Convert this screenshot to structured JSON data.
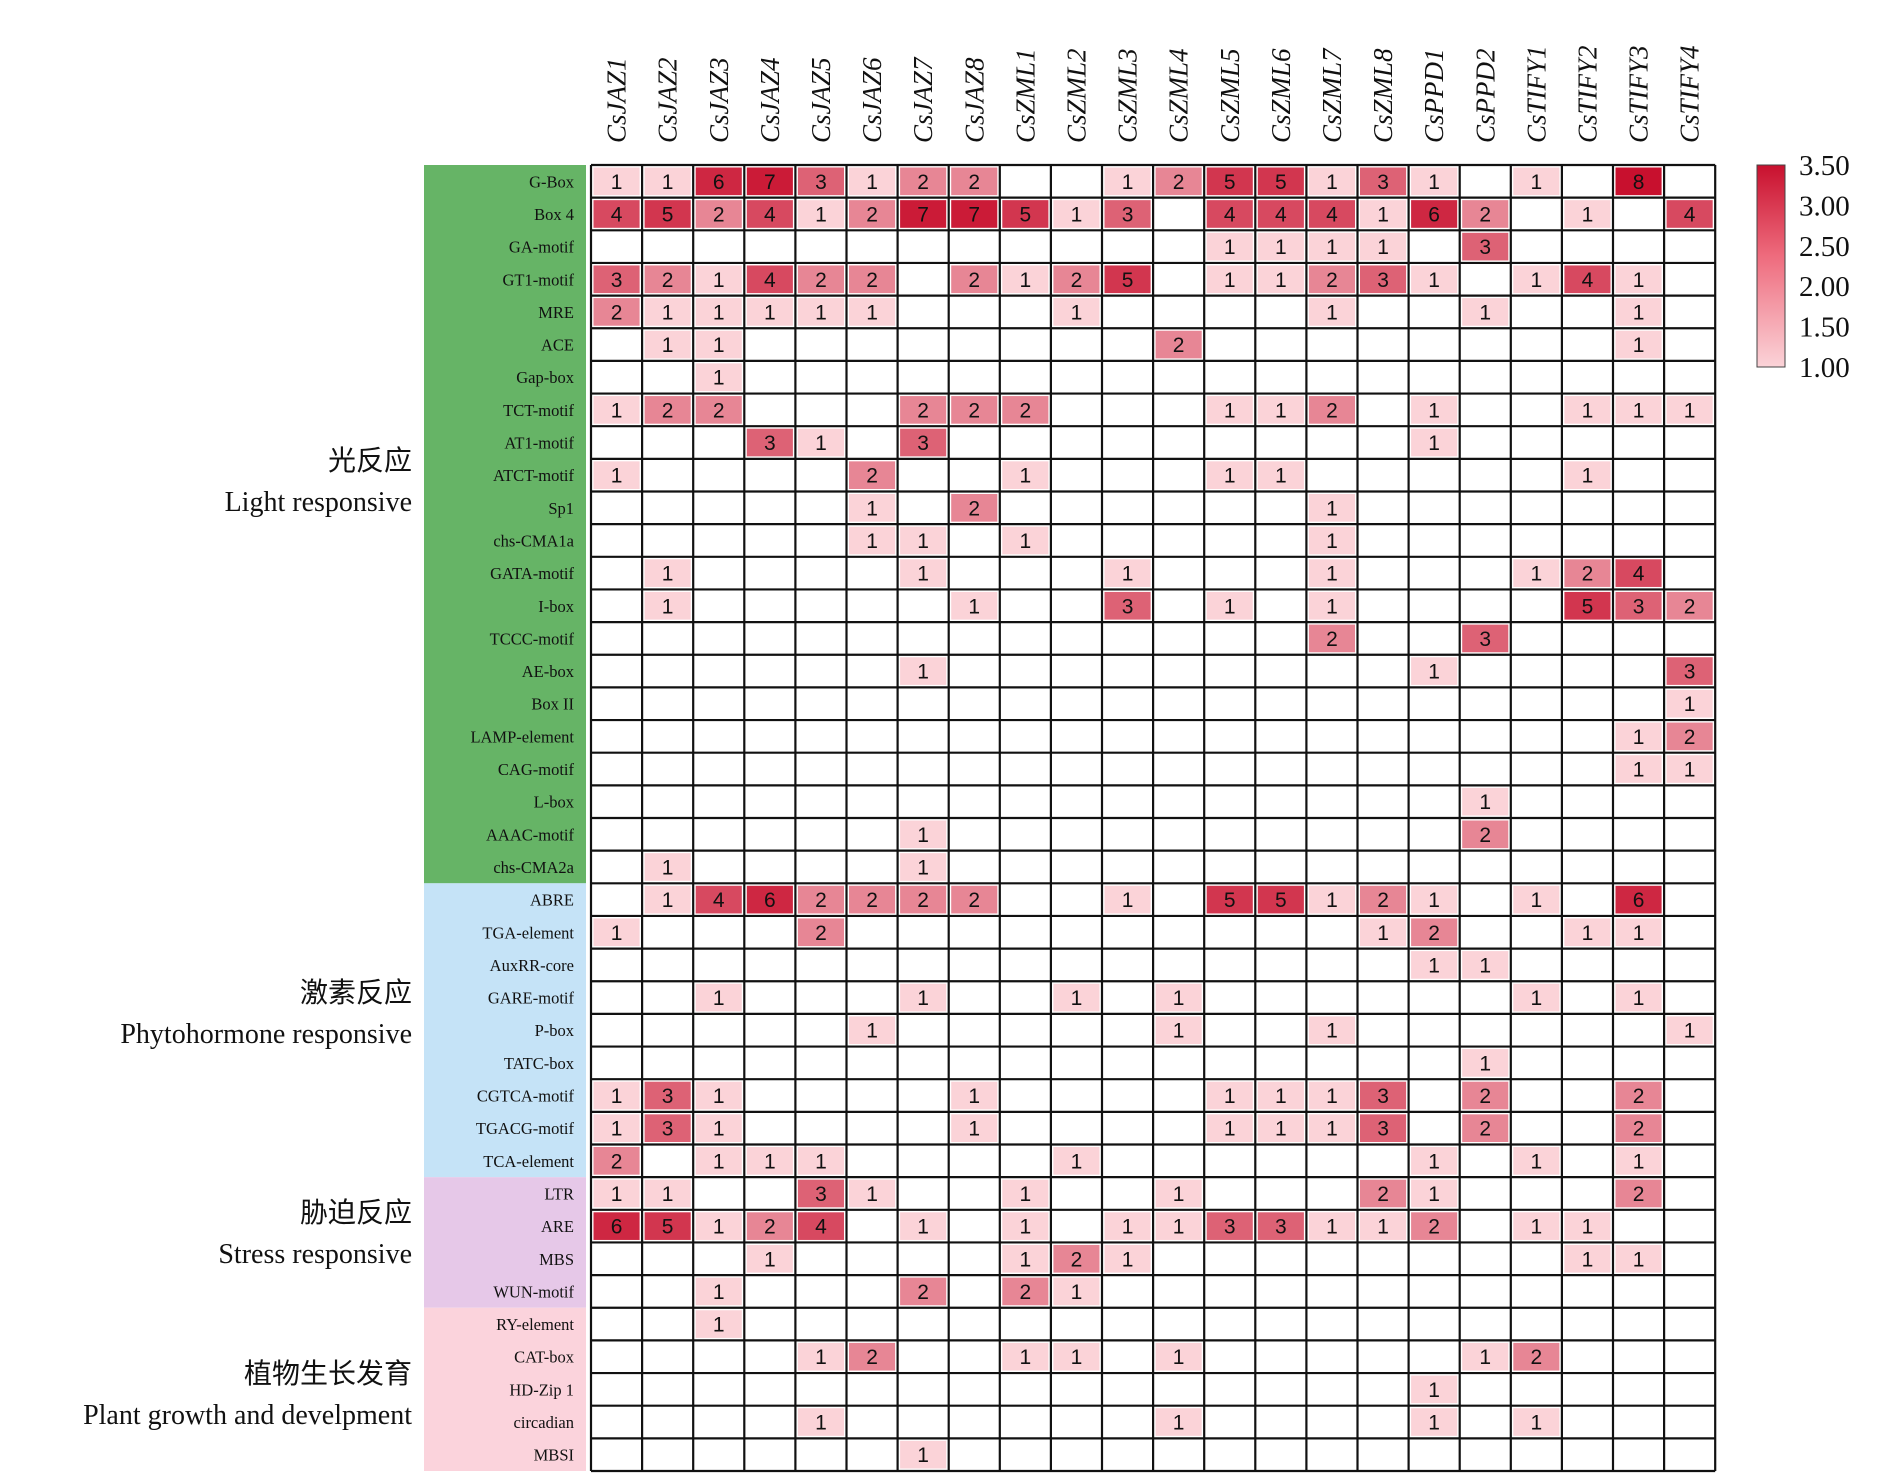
{
  "chart_data": {
    "type": "heatmap",
    "columns": [
      "CsJAZ1",
      "CsJAZ2",
      "CsJAZ3",
      "CsJAZ4",
      "CsJAZ5",
      "CsJAZ6",
      "CsJAZ7",
      "CsJAZ8",
      "CsZML1",
      "CsZML2",
      "CsZML3",
      "CsZML4",
      "CsZML5",
      "CsZML6",
      "CsZML7",
      "CsZML8",
      "CsPPD1",
      "CsPPD2",
      "CsTIFY1",
      "CsTIFY2",
      "CsTIFY3",
      "CsTIFY4"
    ],
    "rows": [
      {
        "label": "G-Box",
        "values": [
          1,
          1,
          6,
          7,
          3,
          1,
          2,
          2,
          null,
          null,
          1,
          2,
          5,
          5,
          1,
          3,
          1,
          null,
          1,
          null,
          8,
          null
        ]
      },
      {
        "label": "Box 4",
        "values": [
          4,
          5,
          2,
          4,
          1,
          2,
          7,
          7,
          5,
          1,
          3,
          null,
          4,
          4,
          4,
          1,
          6,
          2,
          null,
          1,
          null,
          4
        ]
      },
      {
        "label": "GA-motif",
        "values": [
          null,
          null,
          null,
          null,
          null,
          null,
          null,
          null,
          null,
          null,
          null,
          null,
          1,
          1,
          1,
          1,
          null,
          3,
          null,
          null,
          null,
          null
        ]
      },
      {
        "label": "GT1-motif",
        "values": [
          3,
          2,
          1,
          4,
          2,
          2,
          null,
          2,
          1,
          2,
          5,
          null,
          1,
          1,
          2,
          3,
          1,
          null,
          1,
          4,
          1,
          null
        ]
      },
      {
        "label": "MRE",
        "values": [
          2,
          1,
          1,
          1,
          1,
          1,
          null,
          null,
          null,
          1,
          null,
          null,
          null,
          null,
          1,
          null,
          null,
          1,
          null,
          null,
          1,
          null
        ]
      },
      {
        "label": "ACE",
        "values": [
          null,
          1,
          1,
          null,
          null,
          null,
          null,
          null,
          null,
          null,
          null,
          2,
          null,
          null,
          null,
          null,
          null,
          null,
          null,
          null,
          1,
          null
        ]
      },
      {
        "label": "Gap-box",
        "values": [
          null,
          null,
          1,
          null,
          null,
          null,
          null,
          null,
          null,
          null,
          null,
          null,
          null,
          null,
          null,
          null,
          null,
          null,
          null,
          null,
          null,
          null
        ]
      },
      {
        "label": "TCT-motif",
        "values": [
          1,
          2,
          2,
          null,
          null,
          null,
          2,
          2,
          2,
          null,
          null,
          null,
          1,
          1,
          2,
          null,
          1,
          null,
          null,
          1,
          1,
          1
        ]
      },
      {
        "label": "AT1-motif",
        "values": [
          null,
          null,
          null,
          3,
          1,
          null,
          3,
          null,
          null,
          null,
          null,
          null,
          null,
          null,
          null,
          null,
          1,
          null,
          null,
          null,
          null,
          null
        ]
      },
      {
        "label": "ATCT-motif",
        "values": [
          1,
          null,
          null,
          null,
          null,
          2,
          null,
          null,
          1,
          null,
          null,
          null,
          1,
          1,
          null,
          null,
          null,
          null,
          null,
          1,
          null,
          null
        ]
      },
      {
        "label": "Sp1",
        "values": [
          null,
          null,
          null,
          null,
          null,
          1,
          null,
          2,
          null,
          null,
          null,
          null,
          null,
          null,
          1,
          null,
          null,
          null,
          null,
          null,
          null,
          null
        ]
      },
      {
        "label": "chs-CMA1a",
        "values": [
          null,
          null,
          null,
          null,
          null,
          1,
          1,
          null,
          1,
          null,
          null,
          null,
          null,
          null,
          1,
          null,
          null,
          null,
          null,
          null,
          null,
          null
        ]
      },
      {
        "label": "GATA-motif",
        "values": [
          null,
          1,
          null,
          null,
          null,
          null,
          1,
          null,
          null,
          null,
          1,
          null,
          null,
          null,
          1,
          null,
          null,
          null,
          1,
          2,
          4,
          null
        ]
      },
      {
        "label": "I-box",
        "values": [
          null,
          1,
          null,
          null,
          null,
          null,
          null,
          1,
          null,
          null,
          3,
          null,
          1,
          null,
          1,
          null,
          null,
          null,
          null,
          5,
          3,
          2
        ]
      },
      {
        "label": "TCCC-motif",
        "values": [
          null,
          null,
          null,
          null,
          null,
          null,
          null,
          null,
          null,
          null,
          null,
          null,
          null,
          null,
          2,
          null,
          null,
          3,
          null,
          null,
          null,
          null
        ]
      },
      {
        "label": "AE-box",
        "values": [
          null,
          null,
          null,
          null,
          null,
          null,
          1,
          null,
          null,
          null,
          null,
          null,
          null,
          null,
          null,
          null,
          1,
          null,
          null,
          null,
          null,
          3
        ]
      },
      {
        "label": "Box II",
        "values": [
          null,
          null,
          null,
          null,
          null,
          null,
          null,
          null,
          null,
          null,
          null,
          null,
          null,
          null,
          null,
          null,
          null,
          null,
          null,
          null,
          null,
          1
        ]
      },
      {
        "label": "LAMP-element",
        "values": [
          null,
          null,
          null,
          null,
          null,
          null,
          null,
          null,
          null,
          null,
          null,
          null,
          null,
          null,
          null,
          null,
          null,
          null,
          null,
          null,
          1,
          2
        ]
      },
      {
        "label": "CAG-motif",
        "values": [
          null,
          null,
          null,
          null,
          null,
          null,
          null,
          null,
          null,
          null,
          null,
          null,
          null,
          null,
          null,
          null,
          null,
          null,
          null,
          null,
          1,
          1
        ]
      },
      {
        "label": "L-box",
        "values": [
          null,
          null,
          null,
          null,
          null,
          null,
          null,
          null,
          null,
          null,
          null,
          null,
          null,
          null,
          null,
          null,
          null,
          1,
          null,
          null,
          null,
          null
        ]
      },
      {
        "label": "AAAC-motif",
        "values": [
          null,
          null,
          null,
          null,
          null,
          null,
          1,
          null,
          null,
          null,
          null,
          null,
          null,
          null,
          null,
          null,
          null,
          2,
          null,
          null,
          null,
          null
        ]
      },
      {
        "label": "chs-CMA2a",
        "values": [
          null,
          1,
          null,
          null,
          null,
          null,
          1,
          null,
          null,
          null,
          null,
          null,
          null,
          null,
          null,
          null,
          null,
          null,
          null,
          null,
          null,
          null
        ]
      },
      {
        "label": "ABRE",
        "values": [
          null,
          1,
          4,
          6,
          2,
          2,
          2,
          2,
          null,
          null,
          1,
          null,
          5,
          5,
          1,
          2,
          1,
          null,
          1,
          null,
          6,
          null
        ]
      },
      {
        "label": "TGA-element",
        "values": [
          1,
          null,
          null,
          null,
          2,
          null,
          null,
          null,
          null,
          null,
          null,
          null,
          null,
          null,
          null,
          1,
          2,
          null,
          null,
          1,
          1,
          null
        ]
      },
      {
        "label": "AuxRR-core",
        "values": [
          null,
          null,
          null,
          null,
          null,
          null,
          null,
          null,
          null,
          null,
          null,
          null,
          null,
          null,
          null,
          null,
          1,
          1,
          null,
          null,
          null,
          null
        ]
      },
      {
        "label": "GARE-motif",
        "values": [
          null,
          null,
          1,
          null,
          null,
          null,
          1,
          null,
          null,
          1,
          null,
          1,
          null,
          null,
          null,
          null,
          null,
          null,
          1,
          null,
          1,
          null
        ]
      },
      {
        "label": "P-box",
        "values": [
          null,
          null,
          null,
          null,
          null,
          1,
          null,
          null,
          null,
          null,
          null,
          1,
          null,
          null,
          1,
          null,
          null,
          null,
          null,
          null,
          null,
          1
        ]
      },
      {
        "label": "TATC-box",
        "values": [
          null,
          null,
          null,
          null,
          null,
          null,
          null,
          null,
          null,
          null,
          null,
          null,
          null,
          null,
          null,
          null,
          null,
          1,
          null,
          null,
          null,
          null
        ]
      },
      {
        "label": "CGTCA-motif",
        "values": [
          1,
          3,
          1,
          null,
          null,
          null,
          null,
          1,
          null,
          null,
          null,
          null,
          1,
          1,
          1,
          3,
          null,
          2,
          null,
          null,
          2,
          null
        ]
      },
      {
        "label": "TGACG-motif",
        "values": [
          1,
          3,
          1,
          null,
          null,
          null,
          null,
          1,
          null,
          null,
          null,
          null,
          1,
          1,
          1,
          3,
          null,
          2,
          null,
          null,
          2,
          null
        ]
      },
      {
        "label": "TCA-element",
        "values": [
          2,
          null,
          1,
          1,
          1,
          null,
          null,
          null,
          null,
          1,
          null,
          null,
          null,
          null,
          null,
          null,
          1,
          null,
          1,
          null,
          1,
          null
        ]
      },
      {
        "label": "LTR",
        "values": [
          1,
          1,
          null,
          null,
          3,
          1,
          null,
          null,
          1,
          null,
          null,
          1,
          null,
          null,
          null,
          2,
          1,
          null,
          null,
          null,
          2,
          null
        ]
      },
      {
        "label": "ARE",
        "values": [
          6,
          5,
          1,
          2,
          4,
          null,
          1,
          null,
          1,
          null,
          1,
          1,
          3,
          3,
          1,
          1,
          2,
          null,
          1,
          1,
          null,
          null
        ]
      },
      {
        "label": "MBS",
        "values": [
          null,
          null,
          null,
          1,
          null,
          null,
          null,
          null,
          1,
          2,
          1,
          null,
          null,
          null,
          null,
          null,
          null,
          null,
          null,
          1,
          1,
          null
        ]
      },
      {
        "label": "WUN-motif",
        "values": [
          null,
          null,
          1,
          null,
          null,
          null,
          2,
          null,
          2,
          1,
          null,
          null,
          null,
          null,
          null,
          null,
          null,
          null,
          null,
          null,
          null,
          null
        ]
      },
      {
        "label": "RY-element",
        "values": [
          null,
          null,
          1,
          null,
          null,
          null,
          null,
          null,
          null,
          null,
          null,
          null,
          null,
          null,
          null,
          null,
          null,
          null,
          null,
          null,
          null,
          null
        ]
      },
      {
        "label": "CAT-box",
        "values": [
          null,
          null,
          null,
          null,
          1,
          2,
          null,
          null,
          1,
          1,
          null,
          1,
          null,
          null,
          null,
          null,
          null,
          1,
          2,
          null,
          null,
          null
        ]
      },
      {
        "label": "HD-Zip 1",
        "values": [
          null,
          null,
          null,
          null,
          null,
          null,
          null,
          null,
          null,
          null,
          null,
          null,
          null,
          null,
          null,
          null,
          1,
          null,
          null,
          null,
          null,
          null
        ]
      },
      {
        "label": "circadian",
        "values": [
          null,
          null,
          null,
          null,
          1,
          null,
          null,
          null,
          null,
          null,
          null,
          1,
          null,
          null,
          null,
          null,
          1,
          null,
          1,
          null,
          null,
          null
        ]
      },
      {
        "label": "MBSI",
        "values": [
          null,
          null,
          null,
          null,
          null,
          null,
          1,
          null,
          null,
          null,
          null,
          null,
          null,
          null,
          null,
          null,
          null,
          null,
          null,
          null,
          null,
          null
        ]
      }
    ],
    "groups": [
      {
        "label_cn": "光反应",
        "label_en": "Light responsive",
        "start": 0,
        "end": 21,
        "color": "#66b466"
      },
      {
        "label_cn": "激素反应",
        "label_en": "Phytohormone responsive",
        "start": 22,
        "end": 30,
        "color": "#c5e3f7"
      },
      {
        "label_cn": "胁迫反应",
        "label_en": "Stress responsive",
        "start": 31,
        "end": 34,
        "color": "#e6c8e8"
      },
      {
        "label_cn": "植物生长发育",
        "label_en": "Plant growth and develpment",
        "start": 35,
        "end": 39,
        "color": "#fbd3dc"
      }
    ],
    "color_scale": {
      "min": 1.0,
      "max": 3.5,
      "ticks": [
        "3.50",
        "3.00",
        "2.50",
        "2.00",
        "1.50",
        "1.00"
      ],
      "low_color": "#fbd3d8",
      "high_color": "#c8102e"
    }
  }
}
